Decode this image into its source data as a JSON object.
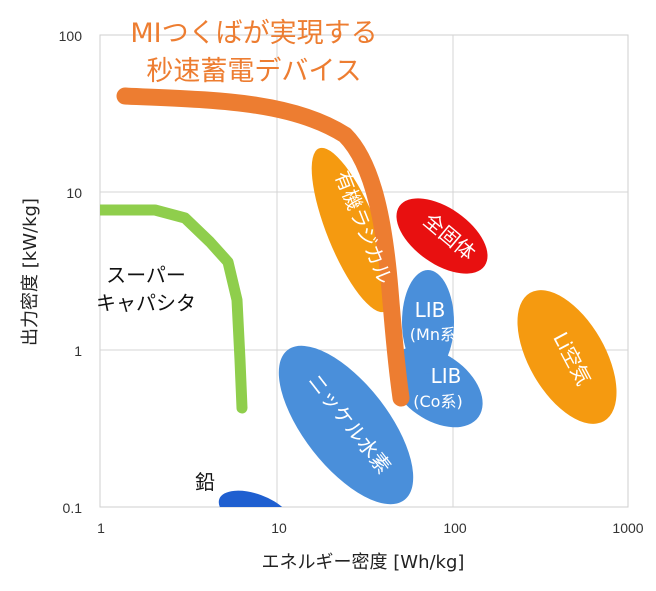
{
  "chart_data": {
    "type": "scatter",
    "title": "MIつくばが実現する秒速蓄電デバイス",
    "title_lines": [
      "MIつくばが実現する",
      "秒速蓄電デバイス"
    ],
    "xlabel": "エネルギー密度 [Wh/kg]",
    "ylabel": "出力密度 [kW/kg]",
    "xscale": "log",
    "yscale": "log",
    "xlim": [
      1,
      1000
    ],
    "ylim": [
      0.1,
      100
    ],
    "x_ticks": [
      1,
      10,
      100,
      1000
    ],
    "x_tick_labels": [
      "1",
      "10",
      "100",
      "1000"
    ],
    "y_ticks": [
      0.1,
      1,
      10,
      100
    ],
    "y_tick_labels": [
      "0.1",
      "1",
      "10",
      "100"
    ],
    "grid": true,
    "regions": [
      {
        "name": "鉛",
        "label": "鉛",
        "color": "#1f5fd0",
        "center": [
          8,
          0.095
        ],
        "shape": "ellipse"
      },
      {
        "name": "supercapacitor",
        "label_lines": [
          "スーパー",
          "キャパシタ"
        ],
        "color": "#8fce4c",
        "shape": "curve",
        "points": [
          [
            1,
            7.8
          ],
          [
            2,
            7.6
          ],
          [
            3,
            6.5
          ],
          [
            4.5,
            4.5
          ],
          [
            6,
            3.5
          ],
          [
            6.4,
            2.0
          ],
          [
            6.6,
            0.4
          ]
        ]
      },
      {
        "name": "有機ラジカル",
        "label": "有機ラジカル",
        "color": "#f59a10",
        "center": [
          27,
          6.5
        ],
        "shape": "ellipse"
      },
      {
        "name": "全固体",
        "label": "全固体",
        "color": "#e81010",
        "center": [
          80,
          5.8
        ],
        "shape": "ellipse"
      },
      {
        "name": "LIB (Mn系)",
        "label": "LIB",
        "sub": "(Mn系)",
        "color": "#4a8fda",
        "center": [
          72,
          1.95
        ],
        "shape": "ellipse"
      },
      {
        "name": "LIB (Co系)",
        "label": "LIB",
        "sub": "(Co系)",
        "color": "#4a8fda",
        "center": [
          90,
          0.8
        ],
        "shape": "ellipse"
      },
      {
        "name": "ニッケル水素",
        "label": "ニッケル水素",
        "color": "#4a8fda",
        "center": [
          28,
          0.38
        ],
        "shape": "ellipse"
      },
      {
        "name": "Li空気",
        "label": "Li空気",
        "color": "#f59a10",
        "center": [
          440,
          1.0
        ],
        "shape": "ellipse"
      },
      {
        "name": "MIつくば",
        "color": "#ed7d31",
        "shape": "curve",
        "points": [
          [
            1.2,
            40
          ],
          [
            3,
            39
          ],
          [
            8,
            37
          ],
          [
            15,
            33
          ],
          [
            22,
            25
          ],
          [
            30,
            18
          ],
          [
            40,
            8
          ],
          [
            45,
            3
          ],
          [
            50,
            0.5
          ]
        ]
      }
    ]
  }
}
